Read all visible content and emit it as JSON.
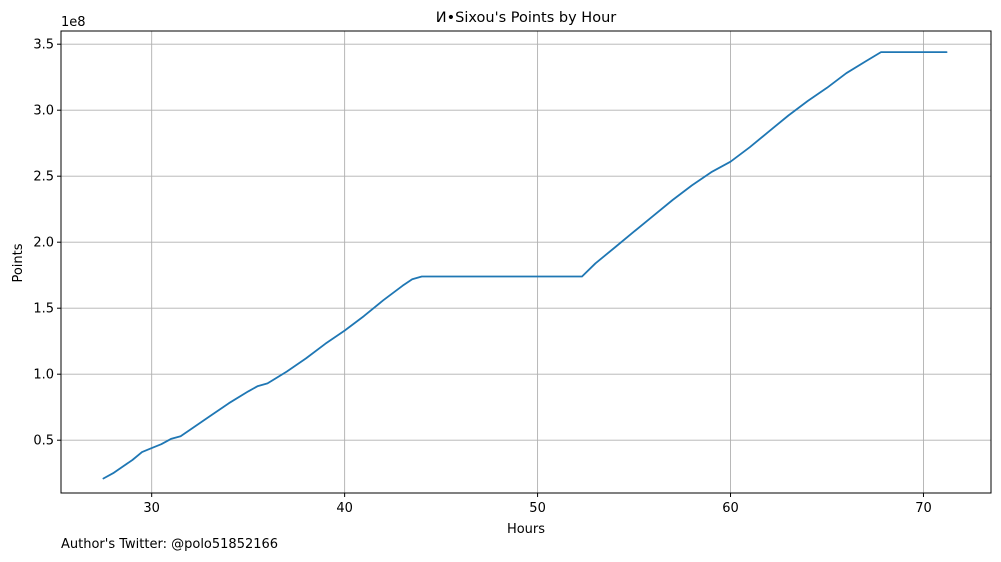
{
  "chart_data": {
    "type": "line",
    "title": "И•Sixou's Points by Hour",
    "xlabel": "Hours",
    "ylabel": "Points",
    "y_offset_label": "1e8",
    "xlim": [
      25.3,
      73.5
    ],
    "ylim": [
      0.1,
      3.6
    ],
    "xticks": [
      30,
      40,
      50,
      60,
      70
    ],
    "xtick_labels": [
      "30",
      "40",
      "50",
      "60",
      "70"
    ],
    "yticks": [
      0.5,
      1.0,
      1.5,
      2.0,
      2.5,
      3.0,
      3.5
    ],
    "ytick_labels": [
      "0.5",
      "1.0",
      "1.5",
      "2.0",
      "2.5",
      "3.0",
      "3.5"
    ],
    "grid": true,
    "line_color": "#1f77b4",
    "grid_color": "#b0b0b0",
    "series": [
      {
        "x": [
          27.5,
          28.0,
          28.5,
          29.0,
          29.5,
          30.0,
          30.5,
          31.0,
          31.5,
          32.0,
          33.0,
          34.0,
          35.0,
          35.5,
          36.0,
          37.0,
          38.0,
          39.0,
          40.0,
          41.0,
          42.0,
          43.0,
          43.5,
          44.0,
          46.0,
          48.0,
          50.0,
          52.0,
          52.3,
          53.0,
          54.0,
          55.0,
          56.0,
          57.0,
          58.0,
          59.0,
          60.0,
          61.0,
          62.0,
          63.0,
          64.0,
          65.0,
          66.0,
          67.0,
          67.8,
          69.0,
          70.0,
          71.2
        ],
        "values": [
          0.21,
          0.25,
          0.3,
          0.35,
          0.41,
          0.44,
          0.47,
          0.51,
          0.53,
          0.58,
          0.68,
          0.78,
          0.87,
          0.91,
          0.93,
          1.02,
          1.12,
          1.23,
          1.33,
          1.44,
          1.56,
          1.67,
          1.72,
          1.74,
          1.74,
          1.74,
          1.74,
          1.74,
          1.74,
          1.84,
          1.96,
          2.08,
          2.2,
          2.32,
          2.43,
          2.53,
          2.61,
          2.72,
          2.84,
          2.96,
          3.07,
          3.17,
          3.28,
          3.37,
          3.44,
          3.44,
          3.44,
          3.44
        ]
      }
    ]
  },
  "footer": {
    "label": "Author's Twitter: ",
    "handle": "@polo51852166"
  }
}
